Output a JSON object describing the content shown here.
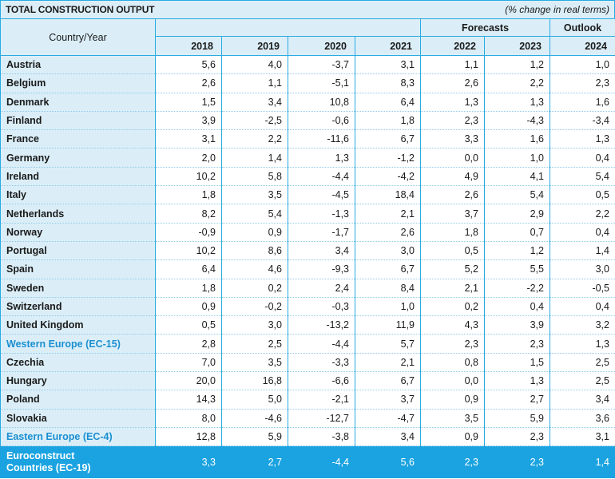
{
  "header": {
    "title": "TOTAL CONSTRUCTION OUTPUT",
    "units": "(% change in real terms)"
  },
  "table": {
    "country_header": "Country/Year",
    "group_forecasts": "Forecasts",
    "group_outlook": "Outlook",
    "years": [
      "2018",
      "2019",
      "2020",
      "2021",
      "2022",
      "2023",
      "2024"
    ],
    "rows": [
      {
        "name": "Austria",
        "values": [
          "5,6",
          "4,0",
          "-3,7",
          "3,1",
          "1,1",
          "1,2",
          "1,0"
        ]
      },
      {
        "name": "Belgium",
        "values": [
          "2,6",
          "1,1",
          "-5,1",
          "8,3",
          "2,6",
          "2,2",
          "2,3"
        ]
      },
      {
        "name": "Denmark",
        "values": [
          "1,5",
          "3,4",
          "10,8",
          "6,4",
          "1,3",
          "1,3",
          "1,6"
        ]
      },
      {
        "name": "Finland",
        "values": [
          "3,9",
          "-2,5",
          "-0,6",
          "1,8",
          "2,3",
          "-4,3",
          "-3,4"
        ]
      },
      {
        "name": "France",
        "values": [
          "3,1",
          "2,2",
          "-11,6",
          "6,7",
          "3,3",
          "1,6",
          "1,3"
        ]
      },
      {
        "name": "Germany",
        "values": [
          "2,0",
          "1,4",
          "1,3",
          "-1,2",
          "0,0",
          "1,0",
          "0,4"
        ]
      },
      {
        "name": "Ireland",
        "values": [
          "10,2",
          "5,8",
          "-4,4",
          "-4,2",
          "4,9",
          "4,1",
          "5,4"
        ]
      },
      {
        "name": "Italy",
        "values": [
          "1,8",
          "3,5",
          "-4,5",
          "18,4",
          "2,6",
          "5,4",
          "0,5"
        ]
      },
      {
        "name": "Netherlands",
        "values": [
          "8,2",
          "5,4",
          "-1,3",
          "2,1",
          "3,7",
          "2,9",
          "2,2"
        ]
      },
      {
        "name": "Norway",
        "values": [
          "-0,9",
          "0,9",
          "-1,7",
          "2,6",
          "1,8",
          "0,7",
          "0,4"
        ]
      },
      {
        "name": "Portugal",
        "values": [
          "10,2",
          "8,6",
          "3,4",
          "3,0",
          "0,5",
          "1,2",
          "1,4"
        ]
      },
      {
        "name": "Spain",
        "values": [
          "6,4",
          "4,6",
          "-9,3",
          "6,7",
          "5,2",
          "5,5",
          "3,0"
        ]
      },
      {
        "name": "Sweden",
        "values": [
          "1,8",
          "0,2",
          "2,4",
          "8,4",
          "2,1",
          "-2,2",
          "-0,5"
        ]
      },
      {
        "name": "Switzerland",
        "values": [
          "0,9",
          "-0,2",
          "-0,3",
          "1,0",
          "0,2",
          "0,4",
          "0,4"
        ]
      },
      {
        "name": "United Kingdom",
        "values": [
          "0,5",
          "3,0",
          "-13,2",
          "11,9",
          "4,3",
          "3,9",
          "3,2"
        ]
      },
      {
        "name": "Western Europe (EC-15)",
        "aggregate": true,
        "values": [
          "2,8",
          "2,5",
          "-4,4",
          "5,7",
          "2,3",
          "2,3",
          "1,3"
        ]
      },
      {
        "name": "Czechia",
        "values": [
          "7,0",
          "3,5",
          "-3,3",
          "2,1",
          "0,8",
          "1,5",
          "2,5"
        ]
      },
      {
        "name": "Hungary",
        "values": [
          "20,0",
          "16,8",
          "-6,6",
          "6,7",
          "0,0",
          "1,3",
          "2,5"
        ]
      },
      {
        "name": "Poland",
        "values": [
          "14,3",
          "5,0",
          "-2,1",
          "3,7",
          "0,9",
          "2,7",
          "3,4"
        ]
      },
      {
        "name": "Slovakia",
        "values": [
          "8,0",
          "-4,6",
          "-12,7",
          "-4,7",
          "3,5",
          "5,9",
          "3,6"
        ]
      },
      {
        "name": "Eastern Europe (EC-4)",
        "aggregate": true,
        "values": [
          "12,8",
          "5,9",
          "-3,8",
          "3,4",
          "0,9",
          "2,3",
          "3,1"
        ]
      }
    ],
    "total": {
      "name_line1": "Euroconstruct",
      "name_line2": "Countries (EC-19)",
      "values": [
        "3,3",
        "2,7",
        "-4,4",
        "5,6",
        "2,3",
        "2,3",
        "1,4"
      ]
    }
  },
  "colors": {
    "accent": "#29abe2",
    "header_fill": "#dbeef8",
    "total_fill": "#1aa3e0",
    "aggregate_text": "#1b8fd0"
  }
}
